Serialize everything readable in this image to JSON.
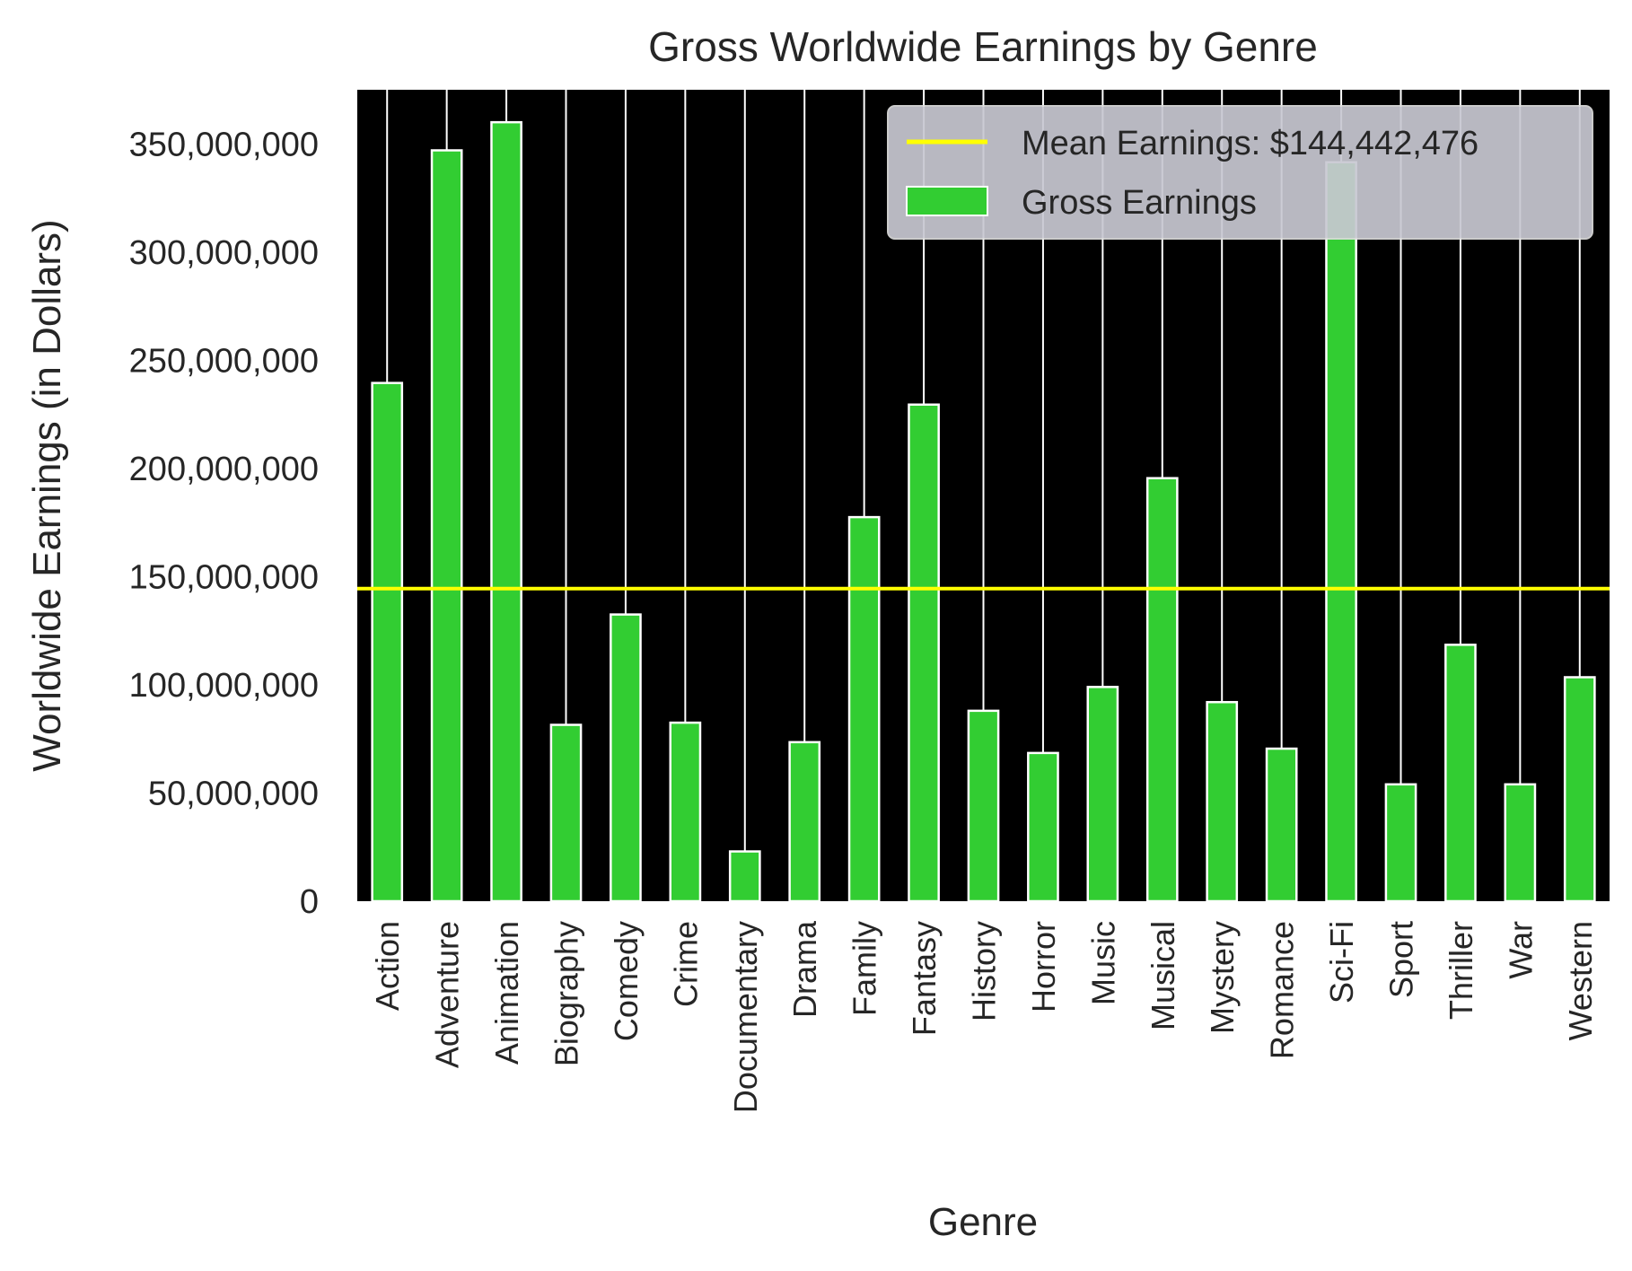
{
  "chart_data": {
    "type": "bar",
    "title": "Gross Worldwide Earnings by Genre",
    "xlabel": "Genre",
    "ylabel": "Worldwide Earnings (in Dollars)",
    "categories": [
      "Action",
      "Adventure",
      "Animation",
      "Biography",
      "Comedy",
      "Crime",
      "Documentary",
      "Drama",
      "Family",
      "Fantasy",
      "History",
      "Horror",
      "Music",
      "Musical",
      "Mystery",
      "Romance",
      "Sci-Fi",
      "Sport",
      "Thriller",
      "War",
      "Western"
    ],
    "series": [
      {
        "name": "Gross Earnings",
        "values": [
          239500000,
          347000000,
          360000000,
          81500000,
          132500000,
          82500000,
          23000000,
          73500000,
          177500000,
          229500000,
          88000000,
          68500000,
          99000000,
          195500000,
          92000000,
          70500000,
          341500000,
          54000000,
          118500000,
          54000000,
          103500000
        ]
      }
    ],
    "mean_line": {
      "label": "Mean Earnings: $144,442,476",
      "value": 144442476
    },
    "ylim": [
      0,
      375000000
    ],
    "yticks": [
      0,
      50000000,
      100000000,
      150000000,
      200000000,
      250000000,
      300000000,
      350000000
    ],
    "ytick_labels": [
      "0",
      "50,000,000",
      "100,000,000",
      "150,000,000",
      "200,000,000",
      "250,000,000",
      "300,000,000",
      "350,000,000"
    ],
    "grid": "vertical",
    "legend_position": "top-right",
    "colors": {
      "bar": "#32cd32",
      "bar_edge": "#ffffff",
      "mean_line": "#ffff00",
      "plot_background": "#000000",
      "grid": "#ffffff",
      "legend_background": "#c8c8d2"
    }
  }
}
